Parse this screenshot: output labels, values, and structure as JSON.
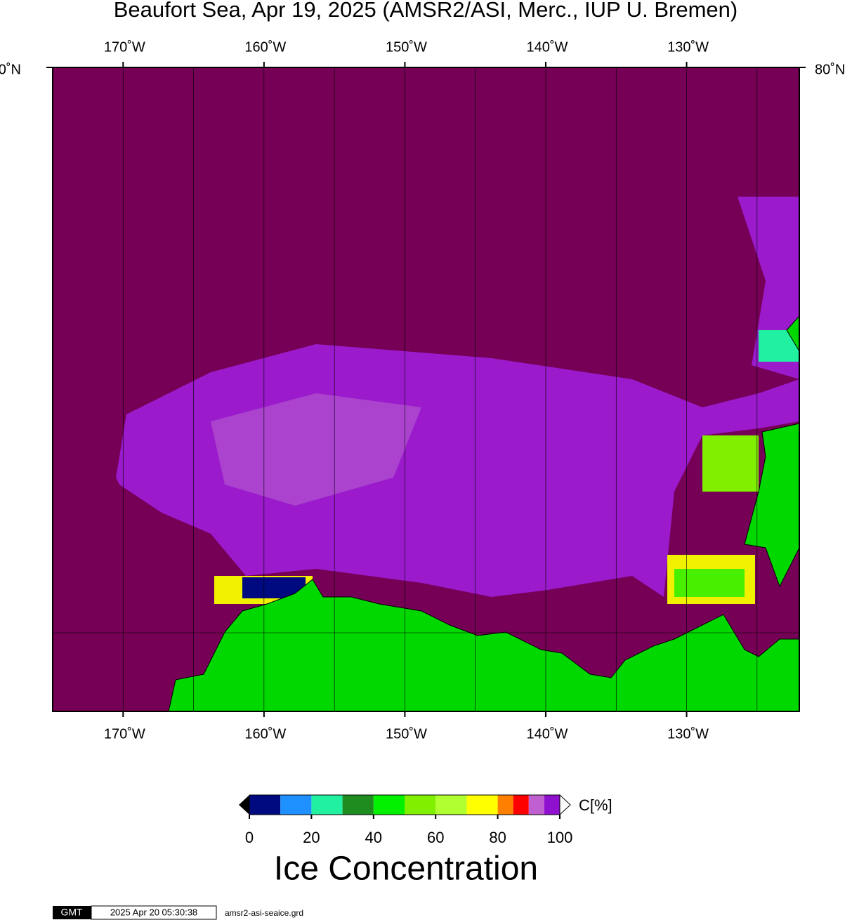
{
  "title": "Beaufort Sea, Apr 19, 2025 (AMSR2/ASI, Merc., IUP U. Bremen)",
  "map": {
    "xlim": [
      -175,
      -122
    ],
    "lon_ticks": [
      {
        "value": -170,
        "label": "170˚W"
      },
      {
        "value": -160,
        "label": "160˚W"
      },
      {
        "value": -150,
        "label": "150˚W"
      },
      {
        "value": -140,
        "label": "140˚W"
      },
      {
        "value": -130,
        "label": "130˚W"
      }
    ],
    "grid_lons": [
      -170,
      -165,
      -160,
      -155,
      -150,
      -145,
      -140,
      -135,
      -130,
      -125
    ],
    "lat_label": "80˚N"
  },
  "colorbar": {
    "label": "Ice Concentration",
    "unit": "C[%]",
    "ticks": [
      0,
      20,
      40,
      60,
      80,
      100
    ],
    "bounds": [
      0,
      10,
      20,
      30,
      40,
      50,
      60,
      70,
      80,
      85,
      90,
      95,
      100
    ],
    "colors": [
      "#000a80",
      "#1e90ff",
      "#20f0a0",
      "#1e8c1e",
      "#00f000",
      "#80f000",
      "#b0ff30",
      "#ffff00",
      "#ff8000",
      "#ff0000",
      "#c060d0",
      "#9010d0"
    ]
  },
  "footer": {
    "logo": "GMT",
    "timestamp": "2025 Apr 20 05:30:38",
    "file": "amsr2-asi-seaice.grd"
  }
}
